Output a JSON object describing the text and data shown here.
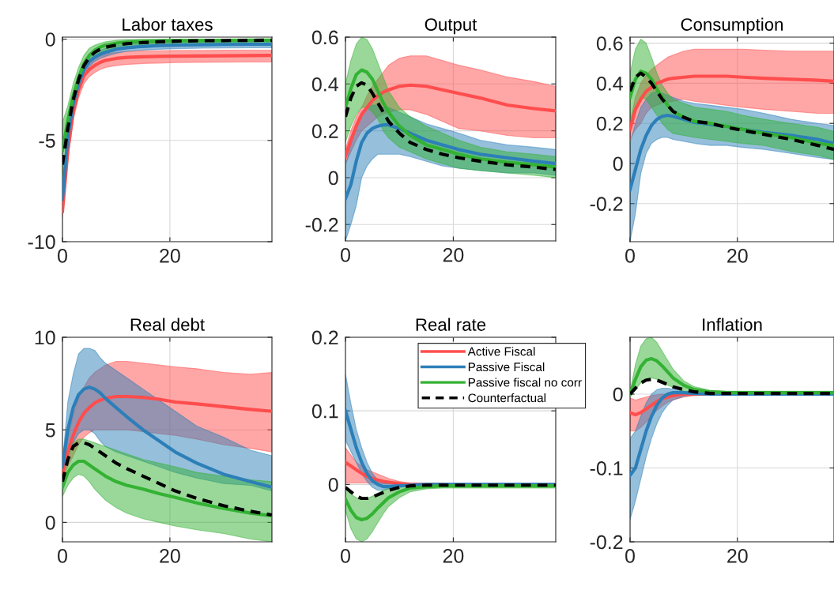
{
  "chart_data": [
    {
      "type": "line",
      "title": "Labor taxes",
      "x": [
        0,
        1,
        2,
        3,
        4,
        5,
        6,
        7,
        8,
        10,
        12,
        15,
        18,
        21,
        25,
        30,
        35,
        39
      ],
      "xlim": [
        0,
        39
      ],
      "xticks": [
        0,
        20
      ],
      "ylim": [
        -10,
        0.1
      ],
      "yticks": [
        -10,
        -5,
        0
      ],
      "grid": true,
      "series": [
        {
          "color": "#ff4d4d",
          "values": [
            -8.5,
            -5.5,
            -3.6,
            -2.5,
            -1.8,
            -1.5,
            -1.3,
            -1.15,
            -1.05,
            -0.95,
            -0.9,
            -0.87,
            -0.85,
            -0.84,
            -0.83,
            -0.82,
            -0.81,
            -0.8
          ],
          "lower": [
            -8.8,
            -5.9,
            -4.0,
            -2.9,
            -2.2,
            -1.85,
            -1.65,
            -1.5,
            -1.4,
            -1.3,
            -1.25,
            -1.2,
            -1.18,
            -1.16,
            -1.15,
            -1.14,
            -1.13,
            -1.13
          ],
          "upper": [
            -8.2,
            -5.1,
            -3.2,
            -2.1,
            -1.4,
            -1.15,
            -0.95,
            -0.82,
            -0.73,
            -0.65,
            -0.6,
            -0.58,
            -0.57,
            -0.56,
            -0.56,
            -0.55,
            -0.55,
            -0.55
          ]
        },
        {
          "color": "#2c7fb8",
          "values": [
            -7.9,
            -4.8,
            -3.2,
            -2.2,
            -1.5,
            -1.1,
            -0.9,
            -0.75,
            -0.65,
            -0.5,
            -0.42,
            -0.36,
            -0.32,
            -0.3,
            -0.28,
            -0.26,
            -0.25,
            -0.25
          ],
          "lower": [
            -8.2,
            -5.1,
            -3.5,
            -2.5,
            -1.8,
            -1.35,
            -1.1,
            -0.95,
            -0.85,
            -0.7,
            -0.6,
            -0.54,
            -0.5,
            -0.47,
            -0.45,
            -0.43,
            -0.42,
            -0.42
          ],
          "upper": [
            -7.6,
            -4.5,
            -2.9,
            -1.9,
            -1.2,
            -0.85,
            -0.7,
            -0.55,
            -0.45,
            -0.32,
            -0.25,
            -0.2,
            -0.16,
            -0.14,
            -0.12,
            -0.1,
            -0.09,
            -0.09
          ]
        },
        {
          "color": "#33b233",
          "values": [
            -5.5,
            -4.0,
            -2.8,
            -1.9,
            -1.2,
            -0.8,
            -0.55,
            -0.4,
            -0.3,
            -0.2,
            -0.15,
            -0.12,
            -0.1,
            -0.08,
            -0.07,
            -0.06,
            -0.05,
            -0.05
          ],
          "lower": [
            -7.0,
            -4.6,
            -3.3,
            -2.3,
            -1.6,
            -1.15,
            -0.85,
            -0.68,
            -0.56,
            -0.44,
            -0.37,
            -0.32,
            -0.29,
            -0.27,
            -0.25,
            -0.24,
            -0.23,
            -0.23
          ],
          "upper": [
            -4.1,
            -3.3,
            -2.2,
            -1.4,
            -0.8,
            -0.45,
            -0.3,
            -0.2,
            -0.13,
            -0.06,
            -0.03,
            -0.01,
            0.0,
            0.0,
            0.0,
            0.0,
            0.0,
            0.0
          ]
        },
        {
          "color": "#000000",
          "line_style": "dashed",
          "values": [
            -6.2,
            -4.4,
            -3.0,
            -2.0,
            -1.3,
            -0.9,
            -0.65,
            -0.5,
            -0.4,
            -0.3,
            -0.22,
            -0.17,
            -0.13,
            -0.1,
            -0.08,
            -0.07,
            -0.06,
            -0.05
          ]
        }
      ]
    },
    {
      "type": "line",
      "title": "Output",
      "x": [
        0,
        1,
        2,
        3,
        4,
        5,
        6,
        7,
        8,
        10,
        12,
        15,
        18,
        21,
        25,
        30,
        35,
        39
      ],
      "xlim": [
        0,
        39
      ],
      "xticks": [
        0,
        20
      ],
      "ylim": [
        -0.27,
        0.6
      ],
      "yticks": [
        -0.2,
        0,
        0.2,
        0.4,
        0.6
      ],
      "grid": true,
      "series": [
        {
          "color": "#ff4d4d",
          "values": [
            0.09,
            0.16,
            0.22,
            0.27,
            0.3,
            0.33,
            0.35,
            0.365,
            0.375,
            0.39,
            0.395,
            0.39,
            0.375,
            0.36,
            0.34,
            0.31,
            0.295,
            0.285
          ],
          "lower": [
            0.06,
            0.11,
            0.16,
            0.2,
            0.22,
            0.24,
            0.26,
            0.27,
            0.28,
            0.29,
            0.29,
            0.27,
            0.24,
            0.21,
            0.2,
            0.18,
            0.17,
            0.17
          ],
          "upper": [
            0.12,
            0.2,
            0.26,
            0.3,
            0.35,
            0.39,
            0.42,
            0.45,
            0.48,
            0.51,
            0.52,
            0.52,
            0.5,
            0.48,
            0.46,
            0.43,
            0.41,
            0.39
          ]
        },
        {
          "color": "#2c7fb8",
          "values": [
            -0.09,
            -0.03,
            0.07,
            0.15,
            0.19,
            0.21,
            0.22,
            0.225,
            0.225,
            0.21,
            0.19,
            0.16,
            0.14,
            0.12,
            0.1,
            0.085,
            0.07,
            0.06
          ],
          "lower": [
            -0.27,
            -0.2,
            -0.12,
            0.0,
            0.05,
            0.08,
            0.1,
            0.1,
            0.1,
            0.1,
            0.09,
            0.07,
            0.05,
            0.04,
            0.03,
            0.02,
            0.02,
            0.01
          ],
          "upper": [
            0.05,
            0.14,
            0.22,
            0.28,
            0.3,
            0.31,
            0.31,
            0.3,
            0.3,
            0.28,
            0.26,
            0.23,
            0.21,
            0.19,
            0.16,
            0.14,
            0.13,
            0.12
          ]
        },
        {
          "color": "#33b233",
          "values": [
            0.3,
            0.38,
            0.44,
            0.46,
            0.45,
            0.42,
            0.37,
            0.32,
            0.28,
            0.22,
            0.18,
            0.14,
            0.12,
            0.1,
            0.08,
            0.065,
            0.055,
            0.045
          ],
          "lower": [
            0.15,
            0.22,
            0.27,
            0.3,
            0.3,
            0.28,
            0.25,
            0.2,
            0.17,
            0.13,
            0.11,
            0.08,
            0.06,
            0.04,
            0.03,
            0.02,
            0.01,
            0.0
          ],
          "upper": [
            0.4,
            0.5,
            0.57,
            0.6,
            0.59,
            0.55,
            0.49,
            0.43,
            0.37,
            0.3,
            0.26,
            0.22,
            0.19,
            0.16,
            0.13,
            0.11,
            0.1,
            0.09
          ]
        },
        {
          "color": "#000000",
          "line_style": "dashed",
          "values": [
            0.26,
            0.34,
            0.39,
            0.405,
            0.395,
            0.36,
            0.32,
            0.28,
            0.24,
            0.19,
            0.15,
            0.12,
            0.1,
            0.085,
            0.07,
            0.055,
            0.045,
            0.035
          ]
        }
      ]
    },
    {
      "type": "line",
      "title": "Consumption",
      "x": [
        0,
        1,
        2,
        3,
        4,
        5,
        6,
        7,
        8,
        10,
        12,
        15,
        18,
        21,
        25,
        30,
        35,
        38
      ],
      "xlim": [
        0,
        38
      ],
      "xticks": [
        0,
        20
      ],
      "ylim": [
        -0.39,
        0.63
      ],
      "yticks": [
        -0.2,
        0,
        0.2,
        0.4,
        0.6
      ],
      "grid": true,
      "series": [
        {
          "color": "#ff4d4d",
          "values": [
            0.17,
            0.27,
            0.32,
            0.36,
            0.38,
            0.4,
            0.41,
            0.42,
            0.425,
            0.43,
            0.435,
            0.435,
            0.435,
            0.43,
            0.425,
            0.42,
            0.415,
            0.41
          ],
          "lower": [
            0.12,
            0.17,
            0.2,
            0.25,
            0.28,
            0.29,
            0.3,
            0.305,
            0.31,
            0.32,
            0.31,
            0.3,
            0.29,
            0.28,
            0.27,
            0.26,
            0.25,
            0.25
          ],
          "upper": [
            0.2,
            0.33,
            0.4,
            0.44,
            0.47,
            0.49,
            0.51,
            0.53,
            0.54,
            0.56,
            0.57,
            0.57,
            0.57,
            0.57,
            0.565,
            0.56,
            0.56,
            0.56
          ]
        },
        {
          "color": "#2c7fb8",
          "values": [
            -0.13,
            -0.03,
            0.07,
            0.14,
            0.19,
            0.22,
            0.235,
            0.24,
            0.235,
            0.22,
            0.205,
            0.195,
            0.185,
            0.17,
            0.155,
            0.14,
            0.12,
            0.1
          ],
          "lower": [
            -0.39,
            -0.25,
            -0.05,
            0.05,
            0.1,
            0.12,
            0.13,
            0.13,
            0.12,
            0.11,
            0.1,
            0.09,
            0.09,
            0.08,
            0.07,
            0.05,
            0.03,
            0.02
          ],
          "upper": [
            0.1,
            0.2,
            0.28,
            0.32,
            0.35,
            0.36,
            0.35,
            0.34,
            0.33,
            0.31,
            0.3,
            0.29,
            0.28,
            0.27,
            0.25,
            0.22,
            0.2,
            0.19
          ]
        },
        {
          "color": "#33b233",
          "values": [
            0.33,
            0.42,
            0.46,
            0.45,
            0.42,
            0.37,
            0.33,
            0.29,
            0.26,
            0.23,
            0.21,
            0.2,
            0.185,
            0.17,
            0.15,
            0.13,
            0.1,
            0.09
          ],
          "lower": [
            0.22,
            0.28,
            0.33,
            0.32,
            0.28,
            0.24,
            0.2,
            0.17,
            0.15,
            0.14,
            0.13,
            0.12,
            0.11,
            0.1,
            0.09,
            0.06,
            0.04,
            0.02
          ],
          "upper": [
            0.45,
            0.57,
            0.62,
            0.6,
            0.53,
            0.45,
            0.39,
            0.35,
            0.32,
            0.3,
            0.28,
            0.27,
            0.26,
            0.24,
            0.22,
            0.2,
            0.18,
            0.16
          ]
        },
        {
          "color": "#000000",
          "line_style": "dashed",
          "values": [
            0.36,
            0.43,
            0.45,
            0.43,
            0.4,
            0.36,
            0.32,
            0.29,
            0.26,
            0.23,
            0.21,
            0.2,
            0.18,
            0.165,
            0.145,
            0.12,
            0.09,
            0.07
          ]
        }
      ]
    },
    {
      "type": "line",
      "title": "Real debt",
      "x": [
        0,
        1,
        2,
        3,
        4,
        5,
        6,
        7,
        8,
        10,
        12,
        15,
        18,
        21,
        25,
        30,
        35,
        39
      ],
      "xlim": [
        0,
        39
      ],
      "xticks": [
        0,
        20
      ],
      "ylim": [
        -1.05,
        10
      ],
      "yticks": [
        0,
        5,
        10
      ],
      "grid": true,
      "series": [
        {
          "color": "#ff4d4d",
          "values": [
            2.6,
            3.8,
            4.7,
            5.4,
            5.9,
            6.2,
            6.45,
            6.6,
            6.7,
            6.8,
            6.8,
            6.75,
            6.65,
            6.5,
            6.4,
            6.25,
            6.1,
            6.0
          ],
          "lower": [
            2.4,
            3.0,
            3.6,
            4.2,
            4.6,
            4.85,
            5.0,
            5.0,
            5.0,
            5.0,
            5.0,
            4.9,
            4.8,
            4.7,
            4.5,
            4.2,
            4.0,
            3.8
          ],
          "upper": [
            2.8,
            4.5,
            5.8,
            6.7,
            7.3,
            7.8,
            8.1,
            8.3,
            8.5,
            8.7,
            8.7,
            8.6,
            8.5,
            8.4,
            8.3,
            8.1,
            8.0,
            8.1
          ]
        },
        {
          "color": "#2c7fb8",
          "values": [
            3.0,
            5.0,
            6.2,
            6.9,
            7.2,
            7.3,
            7.2,
            7.0,
            6.7,
            6.2,
            5.7,
            5.0,
            4.4,
            3.8,
            3.2,
            2.6,
            2.2,
            1.9
          ],
          "lower": [
            2.8,
            3.5,
            4.3,
            4.8,
            5.0,
            5.0,
            4.8,
            4.4,
            4.1,
            3.8,
            3.6,
            3.3,
            3.0,
            2.7,
            2.4,
            2.1,
            2.0,
            1.7
          ],
          "upper": [
            3.2,
            6.5,
            8.0,
            9.1,
            9.4,
            9.4,
            9.3,
            8.9,
            8.6,
            8.2,
            7.8,
            7.2,
            6.6,
            6.0,
            5.2,
            4.6,
            3.9,
            3.6
          ]
        },
        {
          "color": "#33b233",
          "values": [
            1.9,
            2.7,
            3.1,
            3.3,
            3.3,
            3.1,
            2.9,
            2.7,
            2.5,
            2.2,
            2.0,
            1.8,
            1.55,
            1.35,
            1.05,
            0.75,
            0.5,
            0.35
          ],
          "lower": [
            1.4,
            2.0,
            2.4,
            2.6,
            2.5,
            2.2,
            1.8,
            1.5,
            1.2,
            0.8,
            0.5,
            0.2,
            0.0,
            -0.2,
            -0.4,
            -0.6,
            -0.9,
            -1.05
          ],
          "upper": [
            2.2,
            3.6,
            4.3,
            4.5,
            4.5,
            4.4,
            4.3,
            4.2,
            4.1,
            3.9,
            3.7,
            3.4,
            3.2,
            3.0,
            2.7,
            2.5,
            2.3,
            2.2
          ]
        },
        {
          "color": "#000000",
          "line_style": "dashed",
          "values": [
            2.2,
            3.4,
            4.1,
            4.3,
            4.3,
            4.2,
            4.0,
            3.8,
            3.6,
            3.2,
            2.9,
            2.5,
            2.1,
            1.7,
            1.3,
            0.9,
            0.6,
            0.4
          ]
        }
      ]
    },
    {
      "type": "line",
      "title": "Real rate",
      "x": [
        0,
        1,
        2,
        3,
        4,
        5,
        6,
        7,
        8,
        10,
        12,
        15,
        18,
        21,
        25,
        30,
        35,
        39
      ],
      "xlim": [
        0,
        39
      ],
      "xticks": [
        0,
        20
      ],
      "ylim": [
        -0.078,
        0.2
      ],
      "yticks": [
        0,
        0.1,
        0.2
      ],
      "grid": true,
      "legend": "top right",
      "series": [
        {
          "name": "Active Fiscal",
          "color": "#ff4d4d",
          "values": [
            0.03,
            0.025,
            0.02,
            0.015,
            0.011,
            0.008,
            0.006,
            0.004,
            0.003,
            0.001,
            0.0,
            0.0,
            0.0,
            null,
            null,
            null,
            null,
            null
          ],
          "lower": [
            0.002,
            0.002,
            0.002,
            0.002,
            0.002,
            0.002,
            0.002,
            0.001,
            0.001,
            0.0,
            0.0,
            0.0,
            0.0,
            0.0,
            0.0,
            0.0,
            0.0,
            0.0
          ],
          "upper": [
            0.05,
            0.04,
            0.03,
            0.025,
            0.02,
            0.017,
            0.014,
            0.011,
            0.008,
            0.004,
            0.002,
            0.001,
            0.001,
            0.001,
            0.001,
            0.001,
            0.001,
            0.001
          ]
        },
        {
          "name": "Passive Fiscal",
          "color": "#2c7fb8",
          "values": [
            0.1,
            0.075,
            0.05,
            0.03,
            0.015,
            0.005,
            0.0,
            -0.003,
            -0.003,
            -0.002,
            -0.001,
            0.0,
            0.0,
            0.0,
            0.0,
            0.0,
            0.0,
            0.0
          ],
          "lower": [
            0.06,
            0.045,
            0.03,
            0.015,
            0.004,
            -0.004,
            -0.008,
            -0.008,
            -0.006,
            -0.004,
            -0.002,
            -0.001,
            -0.001,
            -0.001,
            -0.001,
            -0.001,
            -0.001,
            -0.001
          ],
          "upper": [
            0.15,
            0.11,
            0.075,
            0.05,
            0.03,
            0.015,
            0.006,
            0.002,
            0.001,
            0.001,
            0.001,
            0.001,
            0.001,
            0.001,
            0.001,
            0.001,
            0.001,
            0.001
          ]
        },
        {
          "name": "Passive fiscal no corr",
          "color": "#33b233",
          "values": [
            -0.02,
            -0.035,
            -0.045,
            -0.048,
            -0.046,
            -0.04,
            -0.032,
            -0.025,
            -0.018,
            -0.01,
            -0.005,
            -0.003,
            -0.002,
            -0.002,
            -0.002,
            -0.002,
            -0.002,
            -0.002
          ],
          "lower": [
            -0.035,
            -0.06,
            -0.074,
            -0.078,
            -0.074,
            -0.064,
            -0.052,
            -0.04,
            -0.03,
            -0.018,
            -0.01,
            -0.006,
            -0.005,
            -0.005,
            -0.005,
            -0.005,
            -0.005,
            -0.005
          ],
          "upper": [
            -0.005,
            -0.013,
            -0.018,
            -0.02,
            -0.019,
            -0.016,
            -0.012,
            -0.008,
            -0.005,
            -0.002,
            0.0,
            0.0,
            0.0,
            0.0,
            0.0,
            0.0,
            0.0,
            0.0
          ]
        },
        {
          "name": "Counterfactual",
          "color": "#000000",
          "line_style": "dashed",
          "values": [
            -0.004,
            -0.01,
            -0.016,
            -0.019,
            -0.019,
            -0.017,
            -0.014,
            -0.011,
            -0.008,
            -0.004,
            -0.002,
            -0.001,
            -0.001,
            -0.001,
            -0.001,
            -0.001,
            -0.001,
            -0.001
          ]
        }
      ]
    },
    {
      "type": "line",
      "title": "Inflation",
      "x": [
        0,
        1,
        2,
        3,
        4,
        5,
        6,
        7,
        8,
        10,
        12,
        15,
        18,
        21,
        25,
        30,
        35,
        38
      ],
      "xlim": [
        0,
        38
      ],
      "xticks": [
        0,
        20
      ],
      "ylim": [
        -0.2,
        0.077
      ],
      "yticks": [
        -0.2,
        -0.1,
        0
      ],
      "grid": true,
      "series": [
        {
          "color": "#ff4d4d",
          "values": [
            -0.025,
            -0.028,
            -0.025,
            -0.02,
            -0.015,
            -0.01,
            -0.006,
            -0.004,
            -0.002,
            0.0,
            0.0,
            0.0,
            null,
            null,
            null,
            null,
            null,
            null
          ],
          "lower": [
            -0.05,
            -0.05,
            -0.045,
            -0.038,
            -0.03,
            -0.022,
            -0.016,
            -0.011,
            -0.008,
            -0.004,
            -0.002,
            -0.001,
            -0.001,
            -0.001,
            -0.001,
            -0.001,
            -0.001,
            -0.001
          ],
          "upper": [
            -0.005,
            -0.008,
            -0.006,
            -0.004,
            -0.002,
            -0.001,
            0.0,
            0.0,
            0.0,
            0.001,
            0.001,
            0.001,
            0.001,
            0.001,
            0.001,
            0.001,
            0.001,
            0.001
          ]
        },
        {
          "color": "#2c7fb8",
          "values": [
            -0.11,
            -0.1,
            -0.075,
            -0.05,
            -0.03,
            -0.015,
            -0.005,
            0.0,
            0.002,
            0.002,
            0.001,
            0.0,
            0.0,
            0.0,
            0.0,
            0.0,
            0.0,
            0.0
          ],
          "lower": [
            -0.17,
            -0.145,
            -0.115,
            -0.085,
            -0.06,
            -0.04,
            -0.025,
            -0.015,
            -0.008,
            -0.003,
            -0.001,
            -0.001,
            -0.001,
            -0.001,
            -0.001,
            -0.001,
            -0.001,
            -0.001
          ],
          "upper": [
            -0.06,
            -0.05,
            -0.03,
            -0.012,
            0.0,
            0.006,
            0.008,
            0.008,
            0.007,
            0.004,
            0.002,
            0.001,
            0.001,
            0.001,
            0.001,
            0.001,
            0.001,
            0.001
          ]
        },
        {
          "color": "#33b233",
          "values": [
            0.0,
            0.02,
            0.037,
            0.046,
            0.048,
            0.045,
            0.038,
            0.03,
            0.022,
            0.012,
            0.006,
            0.003,
            0.002,
            0.002,
            0.002,
            0.002,
            0.002,
            0.002
          ],
          "lower": [
            -0.002,
            0.006,
            0.015,
            0.02,
            0.022,
            0.02,
            0.016,
            0.012,
            0.009,
            0.004,
            0.002,
            0.001,
            0.0,
            0.0,
            0.0,
            0.0,
            0.0,
            0.0
          ],
          "upper": [
            0.003,
            0.04,
            0.065,
            0.075,
            0.077,
            0.07,
            0.058,
            0.046,
            0.034,
            0.018,
            0.01,
            0.005,
            0.004,
            0.004,
            0.004,
            0.004,
            0.004,
            0.004
          ]
        },
        {
          "color": "#000000",
          "line_style": "dashed",
          "values": [
            0.0,
            0.008,
            0.015,
            0.019,
            0.02,
            0.019,
            0.016,
            0.013,
            0.01,
            0.006,
            0.003,
            0.001,
            0.001,
            0.001,
            0.001,
            0.001,
            0.001,
            0.001
          ]
        }
      ]
    }
  ]
}
